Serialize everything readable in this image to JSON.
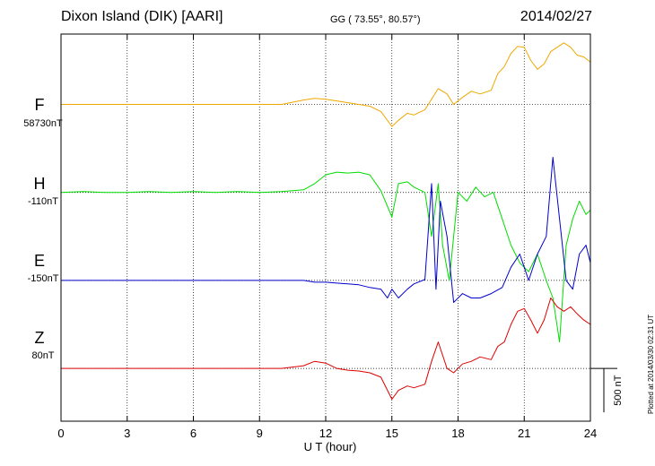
{
  "header": {
    "station": "Dixon Island (DIK)  [AARI]",
    "coords": "GG ( 73.55°,  80.57°)",
    "date": "2014/02/27"
  },
  "plotted_note": "Plotted at 2014/03/30 02:31  UT",
  "colors": {
    "F": "#f0a800",
    "H": "#00dd00",
    "E": "#0000cc",
    "Z": "#dd0000",
    "grid": "#000000"
  },
  "chart_data": {
    "type": "line",
    "title": "Dixon Island (DIK)  [AARI]",
    "xlabel": "U T (hour)",
    "xlim": [
      0,
      24
    ],
    "xticks": [
      0,
      3,
      6,
      9,
      12,
      15,
      18,
      21,
      24
    ],
    "xtick_labels": [
      "0",
      "3",
      "6",
      "9",
      "12",
      "15",
      "18",
      "21",
      "24"
    ],
    "ylim_nT": [
      -1000,
      3400
    ],
    "scale_bar": {
      "label": "500 nT",
      "value_nT": 500
    },
    "series": [
      {
        "name": "F",
        "baseline_label": "58730nT",
        "offset_nT": 2600,
        "x": [
          0,
          1,
          2,
          3,
          4,
          5,
          6,
          7,
          8,
          9,
          10,
          11,
          11.5,
          12,
          12.5,
          13,
          13.5,
          14,
          14.5,
          15,
          15.3,
          15.7,
          16,
          16.5,
          16.8,
          17.1,
          17.5,
          17.8,
          18.2,
          18.6,
          19,
          19.5,
          19.8,
          20.1,
          20.4,
          20.7,
          21,
          21.3,
          21.6,
          21.9,
          22.2,
          22.5,
          22.8,
          23.1,
          23.4,
          23.7,
          24
        ],
        "values": [
          0,
          0,
          0,
          0,
          0,
          0,
          0,
          0,
          0,
          0,
          0,
          50,
          70,
          60,
          40,
          20,
          0,
          -20,
          -80,
          -250,
          -180,
          -100,
          -120,
          -60,
          60,
          180,
          120,
          0,
          80,
          150,
          120,
          160,
          350,
          430,
          580,
          660,
          650,
          500,
          400,
          460,
          600,
          650,
          700,
          650,
          560,
          540,
          480
        ]
      },
      {
        "name": "H",
        "baseline_label": "-110nT",
        "offset_nT": 1600,
        "x": [
          0,
          1,
          2,
          3,
          4,
          5,
          6,
          7,
          8,
          9,
          10,
          11,
          11.5,
          12,
          12.5,
          13,
          13.5,
          14,
          14.5,
          15,
          15.3,
          15.7,
          16,
          16.5,
          16.8,
          17.1,
          17.3,
          17.6,
          18,
          18.4,
          18.8,
          19.2,
          19.6,
          20,
          20.4,
          20.8,
          21.2,
          21.6,
          22,
          22.3,
          22.6,
          22.9,
          23.2,
          23.5,
          23.8,
          24
        ],
        "values": [
          0,
          10,
          0,
          0,
          10,
          0,
          10,
          0,
          10,
          0,
          10,
          30,
          100,
          200,
          230,
          220,
          230,
          200,
          20,
          -280,
          100,
          120,
          60,
          0,
          -500,
          100,
          -600,
          -1000,
          0,
          -100,
          60,
          -50,
          0,
          -300,
          -600,
          -800,
          -900,
          -700,
          -1000,
          -1200,
          -1700,
          -600,
          -300,
          -100,
          -250,
          -200
        ]
      },
      {
        "name": "E",
        "baseline_label": "-150nT",
        "offset_nT": 600,
        "x": [
          0,
          1,
          2,
          3,
          4,
          5,
          6,
          7,
          8,
          9,
          10,
          11,
          11.5,
          12,
          12.5,
          13,
          13.5,
          14,
          14.5,
          14.8,
          15,
          15.3,
          15.7,
          16,
          16.5,
          16.8,
          17,
          17.2,
          17.5,
          17.8,
          18.2,
          18.6,
          19,
          19.5,
          20,
          20.4,
          20.8,
          21.2,
          21.6,
          22,
          22.3,
          22.6,
          22.9,
          23.2,
          23.5,
          23.8,
          24
        ],
        "values": [
          0,
          0,
          0,
          0,
          0,
          0,
          0,
          0,
          0,
          0,
          0,
          0,
          -20,
          -20,
          -30,
          -40,
          -50,
          -80,
          -100,
          -200,
          -100,
          -200,
          -100,
          -40,
          10,
          1100,
          -100,
          900,
          500,
          -250,
          -150,
          -200,
          -200,
          -150,
          -80,
          150,
          300,
          0,
          300,
          500,
          1400,
          700,
          0,
          -100,
          300,
          400,
          200
        ]
      },
      {
        "name": "Z",
        "baseline_label": "80nT",
        "offset_nT": -400,
        "x": [
          0,
          1,
          2,
          3,
          4,
          5,
          6,
          7,
          8,
          9,
          10,
          11,
          11.5,
          12,
          12.5,
          13,
          13.5,
          14,
          14.5,
          15,
          15.3,
          15.7,
          16,
          16.5,
          16.8,
          17.1,
          17.5,
          17.8,
          18.2,
          18.6,
          19,
          19.5,
          19.8,
          20.1,
          20.4,
          20.7,
          21,
          21.3,
          21.6,
          21.9,
          22.2,
          22.5,
          22.8,
          23.1,
          23.4,
          23.7,
          24
        ],
        "values": [
          0,
          0,
          0,
          0,
          0,
          0,
          0,
          0,
          0,
          0,
          0,
          30,
          80,
          60,
          0,
          -20,
          -30,
          -50,
          -100,
          -350,
          -250,
          -200,
          -220,
          -180,
          80,
          300,
          0,
          -50,
          50,
          80,
          130,
          100,
          250,
          300,
          500,
          650,
          680,
          550,
          400,
          550,
          800,
          700,
          650,
          700,
          620,
          550,
          500
        ]
      }
    ]
  }
}
